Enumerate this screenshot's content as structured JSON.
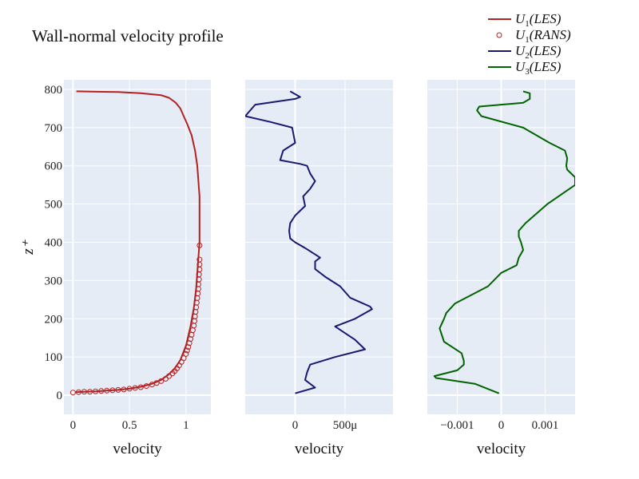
{
  "title": "Wall-normal velocity profile",
  "ylabel": "z⁺",
  "colors": {
    "u1": "#b22222",
    "u2": "#191970",
    "u3": "#006400",
    "bg": "#e5ecf6",
    "grid": "#ffffff"
  },
  "legend": {
    "placement": "top-right",
    "items": [
      {
        "key": "u1les",
        "label": "U1(LES)",
        "sub": "1",
        "body": "(LES)",
        "color": "#b22222",
        "kind": "line"
      },
      {
        "key": "u1rans",
        "label": "U1(RANS)",
        "sub": "1",
        "body": "(RANS)",
        "color": "#b22222",
        "kind": "marker"
      },
      {
        "key": "u2les",
        "label": "U2(LES)",
        "sub": "2",
        "body": "(LES)",
        "color": "#191970",
        "kind": "line"
      },
      {
        "key": "u3les",
        "label": "U3(LES)",
        "sub": "3",
        "body": "(LES)",
        "color": "#006400",
        "kind": "line"
      }
    ]
  },
  "chart_data": [
    {
      "type": "line",
      "xlabel": "velocity",
      "xlim": [
        -0.08,
        1.22
      ],
      "ylim": [
        -50,
        825
      ],
      "xticks": [
        0,
        0.5,
        1
      ],
      "xtick_labels": [
        "0",
        "0.5",
        "1"
      ],
      "yticks": [
        0,
        100,
        200,
        300,
        400,
        500,
        600,
        700,
        800
      ],
      "grid": true,
      "series": [
        {
          "name": "U1(LES)",
          "style": "line",
          "color": "#b22222",
          "x": [
            0.02,
            0.1,
            0.2,
            0.3,
            0.4,
            0.5,
            0.6,
            0.7,
            0.78,
            0.85,
            0.9,
            0.95,
            1.0,
            1.04,
            1.07,
            1.09,
            1.1,
            1.11,
            1.12,
            1.12,
            1.12,
            1.12,
            1.12,
            1.11,
            1.1,
            1.08,
            1.05,
            1.01,
            0.98,
            0.95,
            0.91,
            0.85,
            0.78,
            0.6,
            0.4,
            0.03
          ],
          "y": [
            8,
            9,
            10,
            12,
            14,
            17,
            22,
            30,
            40,
            55,
            70,
            92,
            130,
            180,
            230,
            280,
            320,
            360,
            400,
            440,
            480,
            500,
            520,
            560,
            600,
            640,
            680,
            710,
            730,
            750,
            765,
            778,
            785,
            790,
            793,
            795
          ]
        },
        {
          "name": "U1(RANS)",
          "style": "markers",
          "color": "#b22222",
          "x": [
            0.0,
            0.05,
            0.1,
            0.15,
            0.2,
            0.25,
            0.3,
            0.35,
            0.4,
            0.45,
            0.5,
            0.55,
            0.6,
            0.65,
            0.7,
            0.74,
            0.78,
            0.82,
            0.85,
            0.88,
            0.9,
            0.92,
            0.94,
            0.96,
            0.98,
            1.0,
            1.01,
            1.02,
            1.03,
            1.04,
            1.05,
            1.06,
            1.07,
            1.075,
            1.08,
            1.085,
            1.09,
            1.095,
            1.1,
            1.105,
            1.11,
            1.11,
            1.115,
            1.115,
            1.12,
            1.12,
            1.12,
            1.12
          ],
          "y": [
            7,
            8,
            9,
            9,
            10,
            11,
            12,
            13,
            14,
            15,
            17,
            19,
            21,
            24,
            28,
            32,
            37,
            43,
            50,
            57,
            63,
            70,
            78,
            87,
            97,
            108,
            117,
            126,
            136,
            147,
            158,
            170,
            182,
            194,
            206,
            218,
            230,
            242,
            254,
            266,
            278,
            290,
            303,
            316,
            329,
            342,
            355,
            392
          ]
        }
      ]
    },
    {
      "type": "line",
      "xlabel": "velocity",
      "xlim": [
        -0.0005,
        0.00098
      ],
      "ylim": [
        -50,
        825
      ],
      "xticks": [
        0,
        0.0005
      ],
      "xtick_labels": [
        "0",
        "500μ"
      ],
      "yticks": [
        0,
        100,
        200,
        300,
        400,
        500,
        600,
        700,
        800
      ],
      "grid": true,
      "series": [
        {
          "name": "U2(LES)",
          "style": "line",
          "color": "#191970",
          "x": [
            0.0,
            0.0002,
            0.0001,
            0.00012,
            0.00015,
            0.0004,
            0.0007,
            0.0006,
            0.0004,
            0.0006,
            0.00077,
            0.00075,
            0.00055,
            0.00045,
            0.0003,
            0.0002,
            0.0002,
            0.00025,
            0.0001,
            0.0,
            -5e-05,
            -6e-05,
            -5e-05,
            0.0,
            0.0001,
            8e-05,
            0.00015,
            0.0002,
            0.00015,
            0.00012,
            5e-05,
            -0.00015,
            -0.00012,
            0.0,
            -3e-05,
            -0.00025,
            -0.0005,
            -0.0004,
            0.0,
            5e-05,
            -5e-05
          ],
          "y": [
            5,
            20,
            40,
            60,
            80,
            100,
            120,
            145,
            180,
            200,
            225,
            232,
            255,
            285,
            310,
            330,
            350,
            360,
            385,
            400,
            410,
            430,
            450,
            470,
            495,
            520,
            540,
            560,
            580,
            600,
            605,
            615,
            640,
            660,
            700,
            715,
            730,
            760,
            775,
            780,
            795
          ]
        }
      ]
    },
    {
      "type": "line",
      "xlabel": "velocity",
      "xlim": [
        -0.00168,
        0.00168
      ],
      "ylim": [
        -50,
        825
      ],
      "xticks": [
        -0.001,
        0,
        0.001
      ],
      "xtick_labels": [
        "−0.001",
        "0",
        "0.001"
      ],
      "yticks": [
        0,
        100,
        200,
        300,
        400,
        500,
        600,
        700,
        800
      ],
      "grid": true,
      "series": [
        {
          "name": "U3(LES)",
          "style": "line",
          "color": "#006400",
          "x": [
            -5e-05,
            -0.0006,
            -0.00148,
            -0.00152,
            -0.001,
            -0.00085,
            -0.00085,
            -0.0009,
            -0.0013,
            -0.0014,
            -0.0013,
            -0.00125,
            -0.00105,
            -0.0003,
            0.0,
            0.00035,
            0.0004,
            0.0005,
            0.00045,
            0.0004,
            0.0004,
            0.00055,
            0.00105,
            0.00168,
            0.00168,
            0.0015,
            0.00148,
            0.0015,
            0.00145,
            0.0011,
            0.0005,
            -0.00045,
            -0.00055,
            -0.0005,
            0.0005,
            0.00065,
            0.00065,
            0.0005
          ],
          "y": [
            5,
            30,
            45,
            50,
            65,
            80,
            90,
            110,
            140,
            175,
            200,
            215,
            240,
            285,
            320,
            340,
            360,
            380,
            400,
            415,
            430,
            450,
            500,
            550,
            570,
            590,
            600,
            620,
            640,
            660,
            700,
            730,
            745,
            755,
            765,
            775,
            790,
            795
          ]
        }
      ]
    }
  ]
}
